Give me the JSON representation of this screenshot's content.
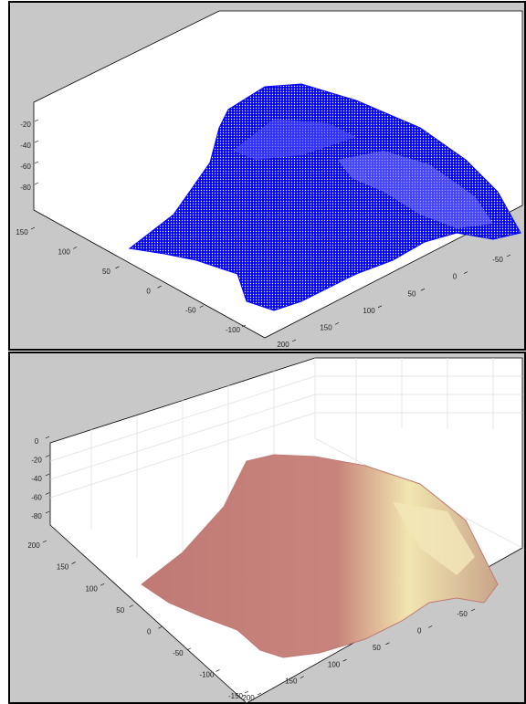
{
  "chart_data": [
    {
      "type": "surface",
      "color": "#0000ff",
      "zticks": [
        -20,
        -40,
        -60,
        -80
      ],
      "yticks": [
        150,
        100,
        50,
        0,
        -50,
        -100
      ],
      "xticks": [
        200,
        150,
        100,
        50,
        0,
        -50
      ]
    },
    {
      "type": "surface",
      "color": "#c07a76",
      "grid": true,
      "zticks": [
        0,
        -20,
        -40,
        -60,
        -80
      ],
      "yticks": [
        200,
        150,
        100,
        50,
        0,
        -50,
        -100,
        -150
      ],
      "xticks": [
        200,
        150,
        100,
        50,
        0,
        -50
      ]
    }
  ]
}
